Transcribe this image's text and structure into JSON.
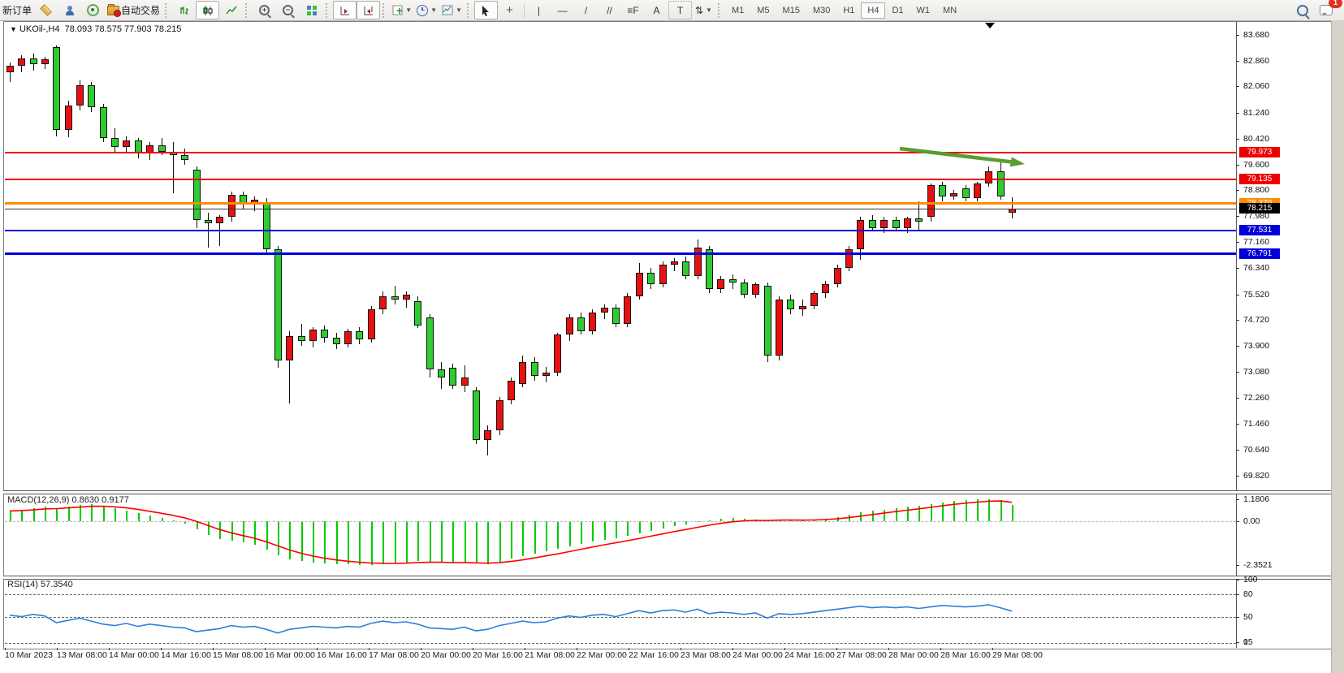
{
  "toolbar": {
    "new_order": "新订单",
    "auto_trading": "自动交易",
    "text_tool_a": "A",
    "text_tool_t": "T",
    "tools": [
      {
        "name": "crosshair",
        "glyph": "+"
      },
      {
        "name": "vertical-line",
        "glyph": "|"
      },
      {
        "name": "horizontal-line",
        "glyph": "—"
      },
      {
        "name": "trendline",
        "glyph": "/"
      },
      {
        "name": "equidistant-channel",
        "glyph": "//"
      },
      {
        "name": "fibonacci",
        "glyph": "≡F"
      },
      {
        "name": "arrows-tool",
        "glyph": "⇅"
      }
    ],
    "timeframes": [
      "M1",
      "M5",
      "M15",
      "M30",
      "H1",
      "H4",
      "D1",
      "W1",
      "MN"
    ],
    "active_timeframe": "H4",
    "notification_count": "1",
    "icons": [
      "market-watch-icon",
      "data-window-icon",
      "signals-icon",
      "autotrading-icon",
      "bar-chart-icon",
      "candlestick-icon",
      "line-chart-icon",
      "zoom-in-icon",
      "zoom-out-icon",
      "tile-windows-icon",
      "auto-scroll-icon",
      "chart-shift-icon",
      "indicators-add-icon",
      "periods-clock-icon",
      "templates-icon",
      "cursor-icon",
      "search-icon",
      "chat-icon"
    ]
  },
  "chart": {
    "symbol_title": "UKOil-,H4",
    "ohlc_text": "78.093 78.575 77.903 78.215",
    "price_ticks": [
      "83.680",
      "82.860",
      "82.060",
      "81.240",
      "80.420",
      "79.600",
      "78.800",
      "77.980",
      "77.160",
      "76.340",
      "75.520",
      "74.720",
      "73.900",
      "73.080",
      "72.260",
      "71.460",
      "70.640",
      "69.820"
    ],
    "lines": [
      {
        "value": 79.973,
        "label": "79.973",
        "color": "#ee0000",
        "thickness": 2
      },
      {
        "value": 79.135,
        "label": "79.135",
        "color": "#ee0000",
        "thickness": 2
      },
      {
        "value": 78.37,
        "label": "78.370",
        "color": "#ff8c00",
        "thickness": 3
      },
      {
        "value": 77.531,
        "label": "77.531",
        "color": "#0000d8",
        "thickness": 2
      },
      {
        "value": 76.791,
        "label": "76.791",
        "color": "#0000d8",
        "thickness": 3
      }
    ],
    "current_price": {
      "value": 78.215,
      "label": "78.215",
      "badge_color": "#000000"
    },
    "colors": {
      "bull": "#e81010",
      "bear": "#2ecc2e"
    },
    "candles": [
      [
        82.5,
        82.8,
        82.2,
        82.7
      ],
      [
        82.7,
        83.05,
        82.5,
        82.95
      ],
      [
        82.95,
        83.1,
        82.55,
        82.75
      ],
      [
        82.75,
        83.0,
        82.6,
        82.92
      ],
      [
        83.3,
        83.35,
        80.5,
        80.7
      ],
      [
        80.7,
        81.6,
        80.45,
        81.45
      ],
      [
        81.45,
        82.25,
        81.3,
        82.1
      ],
      [
        82.1,
        82.2,
        81.25,
        81.4
      ],
      [
        81.4,
        81.5,
        80.3,
        80.45
      ],
      [
        80.45,
        80.75,
        80.0,
        80.15
      ],
      [
        80.15,
        80.5,
        79.95,
        80.35
      ],
      [
        80.35,
        80.45,
        79.8,
        79.95
      ],
      [
        79.95,
        80.3,
        79.75,
        80.2
      ],
      [
        80.2,
        80.45,
        79.9,
        80.0
      ],
      [
        80.0,
        80.3,
        78.7,
        79.9
      ],
      [
        79.9,
        80.1,
        79.6,
        79.75
      ],
      [
        79.45,
        79.55,
        77.6,
        77.85
      ],
      [
        77.85,
        78.1,
        77.0,
        77.75
      ],
      [
        77.75,
        78.0,
        77.05,
        77.95
      ],
      [
        77.95,
        78.75,
        77.8,
        78.65
      ],
      [
        78.65,
        78.75,
        78.2,
        78.35
      ],
      [
        78.35,
        78.6,
        78.15,
        78.5
      ],
      [
        78.4,
        78.55,
        76.8,
        76.95
      ],
      [
        76.95,
        77.05,
        73.2,
        73.45
      ],
      [
        73.45,
        74.35,
        72.1,
        74.2
      ],
      [
        74.2,
        74.6,
        73.9,
        74.05
      ],
      [
        74.05,
        74.5,
        73.85,
        74.4
      ],
      [
        74.4,
        74.55,
        74.0,
        74.15
      ],
      [
        74.15,
        74.3,
        73.8,
        73.95
      ],
      [
        73.95,
        74.45,
        73.85,
        74.35
      ],
      [
        74.35,
        74.5,
        73.95,
        74.1
      ],
      [
        74.1,
        75.15,
        74.0,
        75.05
      ],
      [
        75.05,
        75.6,
        74.9,
        75.45
      ],
      [
        75.45,
        75.8,
        75.2,
        75.35
      ],
      [
        75.35,
        75.6,
        75.1,
        75.5
      ],
      [
        75.3,
        75.45,
        74.45,
        74.55
      ],
      [
        74.8,
        74.9,
        72.9,
        73.15
      ],
      [
        73.15,
        73.4,
        72.55,
        72.9
      ],
      [
        73.2,
        73.35,
        72.55,
        72.65
      ],
      [
        72.65,
        73.3,
        72.45,
        72.9
      ],
      [
        72.5,
        72.6,
        70.8,
        70.95
      ],
      [
        70.95,
        71.4,
        70.45,
        71.25
      ],
      [
        71.25,
        72.3,
        71.1,
        72.2
      ],
      [
        72.2,
        72.9,
        72.05,
        72.8
      ],
      [
        72.7,
        73.6,
        72.6,
        73.4
      ],
      [
        73.4,
        73.55,
        72.8,
        72.95
      ],
      [
        72.95,
        73.25,
        72.75,
        73.05
      ],
      [
        73.05,
        74.3,
        72.95,
        74.25
      ],
      [
        74.25,
        74.9,
        74.05,
        74.8
      ],
      [
        74.8,
        74.95,
        74.25,
        74.35
      ],
      [
        74.35,
        75.05,
        74.25,
        74.95
      ],
      [
        74.95,
        75.2,
        74.75,
        75.1
      ],
      [
        75.1,
        75.2,
        74.5,
        74.6
      ],
      [
        74.6,
        75.55,
        74.5,
        75.45
      ],
      [
        75.45,
        76.5,
        75.35,
        76.2
      ],
      [
        76.2,
        76.35,
        75.7,
        75.85
      ],
      [
        75.85,
        76.55,
        75.75,
        76.45
      ],
      [
        76.45,
        76.65,
        76.25,
        76.55
      ],
      [
        76.55,
        76.7,
        76.0,
        76.1
      ],
      [
        76.1,
        77.25,
        76.0,
        77.0
      ],
      [
        76.95,
        77.05,
        75.55,
        75.7
      ],
      [
        75.7,
        76.1,
        75.55,
        76.0
      ],
      [
        76.0,
        76.15,
        75.7,
        75.9
      ],
      [
        75.9,
        76.0,
        75.4,
        75.5
      ],
      [
        75.5,
        75.9,
        75.4,
        75.85
      ],
      [
        75.8,
        75.9,
        73.4,
        73.6
      ],
      [
        73.6,
        75.45,
        73.45,
        75.35
      ],
      [
        75.35,
        75.5,
        74.9,
        75.05
      ],
      [
        75.05,
        75.35,
        74.85,
        75.15
      ],
      [
        75.15,
        75.65,
        75.05,
        75.55
      ],
      [
        75.55,
        75.95,
        75.4,
        75.85
      ],
      [
        75.85,
        76.45,
        75.75,
        76.35
      ],
      [
        76.35,
        77.05,
        76.25,
        76.95
      ],
      [
        76.95,
        77.95,
        76.6,
        77.85
      ],
      [
        77.85,
        78.0,
        77.5,
        77.6
      ],
      [
        77.6,
        77.95,
        77.45,
        77.85
      ],
      [
        77.85,
        77.95,
        77.5,
        77.6
      ],
      [
        77.6,
        77.95,
        77.45,
        77.9
      ],
      [
        77.9,
        78.45,
        77.55,
        77.8
      ],
      [
        77.95,
        79.0,
        77.8,
        78.95
      ],
      [
        78.95,
        79.05,
        78.45,
        78.6
      ],
      [
        78.6,
        78.8,
        78.5,
        78.7
      ],
      [
        78.85,
        78.95,
        78.45,
        78.55
      ],
      [
        78.55,
        79.05,
        78.45,
        79.0
      ],
      [
        79.0,
        79.55,
        78.9,
        79.4
      ],
      [
        79.4,
        79.75,
        78.5,
        78.6
      ],
      [
        78.093,
        78.575,
        77.903,
        78.215
      ]
    ]
  },
  "macd": {
    "label": "MACD(12,26,9) 0.8630 0.9177",
    "axis_ticks": [
      {
        "v": 1.1806,
        "t": "1.1806"
      },
      {
        "v": 0.0,
        "t": "0.00"
      },
      {
        "v": -2.3521,
        "t": "-2.3521"
      }
    ],
    "histogram_color": "#00cc00",
    "signal_color": "#ff0000",
    "values": [
      0.55,
      0.62,
      0.7,
      0.78,
      0.72,
      0.8,
      0.86,
      0.9,
      0.82,
      0.7,
      0.58,
      0.45,
      0.3,
      0.18,
      0.05,
      -0.12,
      -0.45,
      -0.75,
      -0.95,
      -1.05,
      -1.12,
      -1.25,
      -1.55,
      -1.85,
      -2.05,
      -2.15,
      -2.22,
      -2.27,
      -2.3,
      -2.32,
      -2.34,
      -2.35,
      -2.32,
      -2.28,
      -2.22,
      -2.15,
      -2.18,
      -2.22,
      -2.26,
      -2.22,
      -2.28,
      -2.3,
      -2.18,
      -2.02,
      -1.88,
      -1.74,
      -1.62,
      -1.5,
      -1.36,
      -1.22,
      -1.1,
      -1.0,
      -0.9,
      -0.8,
      -0.66,
      -0.52,
      -0.4,
      -0.28,
      -0.18,
      -0.06,
      0.05,
      0.12,
      0.16,
      0.14,
      0.1,
      0.02,
      0.1,
      0.07,
      0.05,
      0.09,
      0.14,
      0.22,
      0.34,
      0.46,
      0.55,
      0.62,
      0.7,
      0.77,
      0.84,
      0.93,
      1.02,
      1.08,
      1.13,
      1.16,
      1.18,
      1.12,
      0.86
    ]
  },
  "rsi": {
    "label": "RSI(14) 57.3540",
    "axis_ticks": [
      {
        "v": 100,
        "t": "100"
      },
      {
        "v": 80,
        "t": "80"
      },
      {
        "v": 50,
        "t": "50"
      },
      {
        "v": 15,
        "t": "15"
      },
      {
        "v": 0,
        "t": "0"
      }
    ],
    "levels": [
      80,
      50,
      15
    ],
    "line_color": "#2f7ed8",
    "values": [
      52,
      50,
      53,
      51,
      42,
      45,
      48,
      44,
      40,
      38,
      41,
      37,
      40,
      38,
      36,
      35,
      30,
      32,
      34,
      38,
      36,
      37,
      33,
      28,
      33,
      35,
      37,
      36,
      35,
      37,
      36,
      41,
      44,
      42,
      43,
      40,
      35,
      34,
      33,
      36,
      31,
      33,
      38,
      41,
      44,
      42,
      43,
      48,
      51,
      49,
      52,
      53,
      50,
      54,
      58,
      55,
      58,
      59,
      56,
      60,
      54,
      56,
      55,
      53,
      55,
      48,
      54,
      53,
      54,
      56,
      58,
      60,
      62,
      64,
      62,
      63,
      62,
      63,
      61,
      63,
      65,
      64,
      63,
      64,
      66,
      62,
      57.35
    ]
  },
  "time_axis": [
    "10 Mar 2023",
    "13 Mar 08:00",
    "14 Mar 00:00",
    "14 Mar 16:00",
    "15 Mar 08:00",
    "16 Mar 00:00",
    "16 Mar 16:00",
    "17 Mar 08:00",
    "20 Mar 00:00",
    "20 Mar 16:00",
    "21 Mar 08:00",
    "22 Mar 00:00",
    "22 Mar 16:00",
    "23 Mar 08:00",
    "24 Mar 00:00",
    "24 Mar 16:00",
    "27 Mar 08:00",
    "28 Mar 00:00",
    "28 Mar 16:00",
    "29 Mar 08:00"
  ],
  "annotation_arrow": {
    "color": "#5a9e32",
    "from_price": 79.99,
    "to_price": 79.52
  }
}
